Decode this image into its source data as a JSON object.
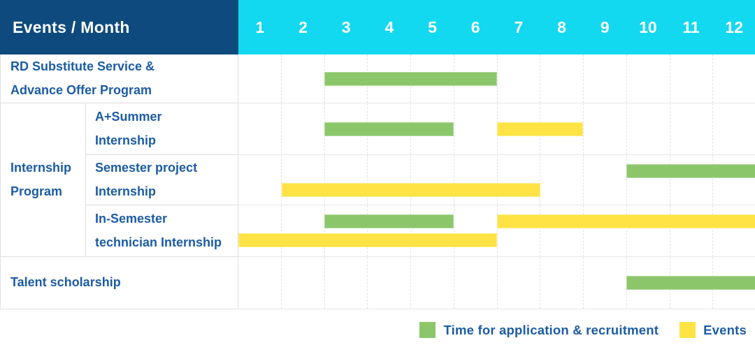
{
  "header": {
    "title": "Events / Month"
  },
  "months": [
    "1",
    "2",
    "3",
    "4",
    "5",
    "6",
    "7",
    "8",
    "9",
    "10",
    "11",
    "12"
  ],
  "colors": {
    "header_bg": "#0E4A7E",
    "months_bg": "#12D8F0",
    "green": "#8BC76A",
    "yellow": "#FFE345",
    "label_text": "#1C5CA5"
  },
  "group": {
    "label": "Internship\nProgram"
  },
  "rows": [
    {
      "id": "rd-substitute-service",
      "label": "RD Substitute Service &\nAdvance Offer Program",
      "bars": [
        {
          "color": "green",
          "start": 3,
          "end": 7,
          "line": "center"
        }
      ]
    },
    {
      "id": "a-plus-summer-internship",
      "label": "A+Summer\nInternship",
      "group": "Internship Program",
      "bars": [
        {
          "color": "green",
          "start": 3,
          "end": 6,
          "line": "center"
        },
        {
          "color": "yellow",
          "start": 7,
          "end": 9,
          "line": "center"
        }
      ]
    },
    {
      "id": "semester-project-internship",
      "label": "Semester project\nInternship",
      "group": "Internship Program",
      "bars": [
        {
          "color": "green",
          "start": 10,
          "end": 13,
          "line": "top"
        },
        {
          "color": "yellow",
          "start": 2,
          "end": 8,
          "line": "bottom"
        }
      ]
    },
    {
      "id": "in-semester-technician-internship",
      "label": "In-Semester\ntechnician Internship",
      "group": "Internship Program",
      "bars": [
        {
          "color": "green",
          "start": 3,
          "end": 6,
          "line": "top"
        },
        {
          "color": "yellow",
          "start": 7,
          "end": 13,
          "line": "top"
        },
        {
          "color": "yellow",
          "start": 1,
          "end": 7,
          "line": "bottom"
        }
      ]
    },
    {
      "id": "talent-scholarship",
      "label": "Talent scholarship",
      "bars": [
        {
          "color": "green",
          "start": 10,
          "end": 13,
          "line": "center"
        }
      ]
    }
  ],
  "legend": [
    {
      "color": "green",
      "label": "Time for application & recruitment"
    },
    {
      "color": "yellow",
      "label": "Events"
    }
  ],
  "chart_data": {
    "type": "table",
    "subtype": "gantt",
    "title": "Events / Month",
    "x_axis": {
      "label": "Month",
      "ticks": [
        1,
        2,
        3,
        4,
        5,
        6,
        7,
        8,
        9,
        10,
        11,
        12
      ],
      "range": [
        1,
        12
      ]
    },
    "grid": "dashed vertical month gridlines",
    "legend_position": "bottom-right",
    "legend": {
      "green": "Time for application & recruitment",
      "yellow": "Events"
    },
    "rows": [
      {
        "event": "RD Substitute Service & Advance Offer Program",
        "spans": [
          {
            "type": "Time for application & recruitment",
            "from_month": 3,
            "to_month": 6
          }
        ]
      },
      {
        "event": "Internship Program — A+Summer Internship",
        "spans": [
          {
            "type": "Time for application & recruitment",
            "from_month": 3,
            "to_month": 5
          },
          {
            "type": "Events",
            "from_month": 7,
            "to_month": 8
          }
        ]
      },
      {
        "event": "Internship Program — Semester project Internship",
        "spans": [
          {
            "type": "Time for application & recruitment",
            "from_month": 10,
            "to_month": 12
          },
          {
            "type": "Events",
            "from_month": 2,
            "to_month": 7
          }
        ]
      },
      {
        "event": "Internship Program — In-Semester technician Internship",
        "spans": [
          {
            "type": "Time for application & recruitment",
            "from_month": 3,
            "to_month": 5
          },
          {
            "type": "Events",
            "from_month": 7,
            "to_month": 12
          },
          {
            "type": "Events",
            "from_month": 1,
            "to_month": 6
          }
        ]
      },
      {
        "event": "Talent scholarship",
        "spans": [
          {
            "type": "Time for application & recruitment",
            "from_month": 10,
            "to_month": 12
          }
        ]
      }
    ]
  }
}
